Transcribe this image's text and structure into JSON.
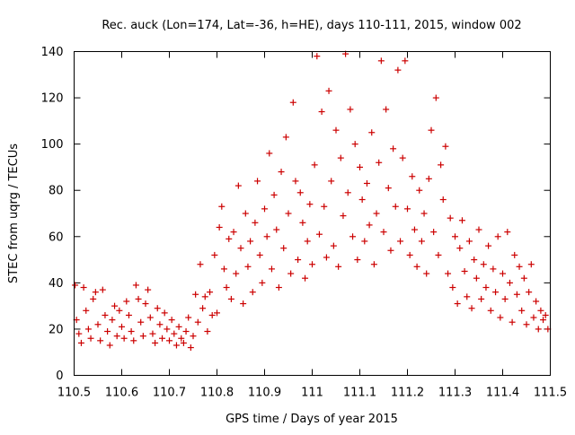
{
  "chart_data": {
    "type": "scatter",
    "title": "Rec. auck (Lon=174, Lat=-36, h=HE), days 110-111, 2015, window 002",
    "xlabel": "GPS time / Days of year 2015",
    "ylabel": "STEC from uqrg / TECUs",
    "xlim": [
      110.5,
      111.5
    ],
    "ylim": [
      0,
      140
    ],
    "xticks": [
      110.5,
      110.6,
      110.7,
      110.8,
      110.9,
      111.0,
      111.1,
      111.2,
      111.3,
      111.4,
      111.5
    ],
    "xtick_labels": [
      "110.5",
      "110.6",
      "110.7",
      "110.8",
      "110.9",
      "111",
      "111.1",
      "111.2",
      "111.3",
      "111.4",
      "111.5"
    ],
    "yticks": [
      0,
      20,
      40,
      60,
      80,
      100,
      120,
      140
    ],
    "ytick_labels": [
      "0",
      "20",
      "40",
      "60",
      "80",
      "100",
      "120",
      "140"
    ],
    "marker": "+",
    "marker_color": "#cc0000",
    "series": [
      {
        "name": "STEC",
        "points": [
          [
            110.502,
            39
          ],
          [
            110.505,
            24
          ],
          [
            110.51,
            18
          ],
          [
            110.515,
            14
          ],
          [
            110.52,
            38
          ],
          [
            110.525,
            28
          ],
          [
            110.53,
            20
          ],
          [
            110.535,
            16
          ],
          [
            110.54,
            33
          ],
          [
            110.545,
            36
          ],
          [
            110.55,
            22
          ],
          [
            110.555,
            15
          ],
          [
            110.56,
            37
          ],
          [
            110.565,
            26
          ],
          [
            110.57,
            19
          ],
          [
            110.575,
            13
          ],
          [
            110.58,
            24
          ],
          [
            110.585,
            30
          ],
          [
            110.59,
            17
          ],
          [
            110.595,
            28
          ],
          [
            110.6,
            21
          ],
          [
            110.605,
            16
          ],
          [
            110.61,
            32
          ],
          [
            110.615,
            26
          ],
          [
            110.62,
            19
          ],
          [
            110.625,
            15
          ],
          [
            110.63,
            39
          ],
          [
            110.635,
            33
          ],
          [
            110.64,
            23
          ],
          [
            110.645,
            17
          ],
          [
            110.65,
            31
          ],
          [
            110.655,
            37
          ],
          [
            110.66,
            25
          ],
          [
            110.665,
            18
          ],
          [
            110.67,
            14
          ],
          [
            110.675,
            29
          ],
          [
            110.68,
            22
          ],
          [
            110.685,
            16
          ],
          [
            110.69,
            27
          ],
          [
            110.695,
            20
          ],
          [
            110.7,
            15
          ],
          [
            110.705,
            24
          ],
          [
            110.71,
            18
          ],
          [
            110.715,
            13
          ],
          [
            110.72,
            21
          ],
          [
            110.725,
            16
          ],
          [
            110.73,
            14
          ],
          [
            110.735,
            19
          ],
          [
            110.74,
            25
          ],
          [
            110.745,
            12
          ],
          [
            110.75,
            17
          ],
          [
            110.755,
            35
          ],
          [
            110.76,
            23
          ],
          [
            110.765,
            48
          ],
          [
            110.77,
            29
          ],
          [
            110.775,
            34
          ],
          [
            110.78,
            19
          ],
          [
            110.785,
            36
          ],
          [
            110.79,
            26
          ],
          [
            110.795,
            52
          ],
          [
            110.8,
            27
          ],
          [
            110.805,
            64
          ],
          [
            110.81,
            73
          ],
          [
            110.815,
            46
          ],
          [
            110.82,
            38
          ],
          [
            110.825,
            59
          ],
          [
            110.83,
            33
          ],
          [
            110.835,
            62
          ],
          [
            110.84,
            44
          ],
          [
            110.845,
            82
          ],
          [
            110.85,
            55
          ],
          [
            110.855,
            31
          ],
          [
            110.86,
            70
          ],
          [
            110.865,
            47
          ],
          [
            110.87,
            58
          ],
          [
            110.875,
            36
          ],
          [
            110.88,
            66
          ],
          [
            110.885,
            84
          ],
          [
            110.89,
            52
          ],
          [
            110.895,
            40
          ],
          [
            110.9,
            72
          ],
          [
            110.905,
            60
          ],
          [
            110.91,
            96
          ],
          [
            110.915,
            46
          ],
          [
            110.92,
            78
          ],
          [
            110.925,
            63
          ],
          [
            110.93,
            38
          ],
          [
            110.935,
            88
          ],
          [
            110.94,
            55
          ],
          [
            110.945,
            103
          ],
          [
            110.95,
            70
          ],
          [
            110.955,
            44
          ],
          [
            110.96,
            118
          ],
          [
            110.965,
            84
          ],
          [
            110.97,
            50
          ],
          [
            110.975,
            79
          ],
          [
            110.98,
            66
          ],
          [
            110.985,
            42
          ],
          [
            110.99,
            58
          ],
          [
            110.995,
            74
          ],
          [
            111.0,
            48
          ],
          [
            111.005,
            91
          ],
          [
            111.01,
            138
          ],
          [
            111.015,
            61
          ],
          [
            111.02,
            114
          ],
          [
            111.025,
            73
          ],
          [
            111.03,
            51
          ],
          [
            111.035,
            123
          ],
          [
            111.04,
            84
          ],
          [
            111.045,
            56
          ],
          [
            111.05,
            106
          ],
          [
            111.055,
            47
          ],
          [
            111.06,
            94
          ],
          [
            111.065,
            69
          ],
          [
            111.07,
            139
          ],
          [
            111.075,
            79
          ],
          [
            111.08,
            115
          ],
          [
            111.085,
            60
          ],
          [
            111.09,
            100
          ],
          [
            111.095,
            50
          ],
          [
            111.1,
            90
          ],
          [
            111.105,
            76
          ],
          [
            111.11,
            58
          ],
          [
            111.115,
            83
          ],
          [
            111.12,
            65
          ],
          [
            111.125,
            105
          ],
          [
            111.13,
            48
          ],
          [
            111.135,
            70
          ],
          [
            111.14,
            92
          ],
          [
            111.145,
            136
          ],
          [
            111.15,
            62
          ],
          [
            111.155,
            115
          ],
          [
            111.16,
            81
          ],
          [
            111.165,
            54
          ],
          [
            111.17,
            98
          ],
          [
            111.175,
            73
          ],
          [
            111.18,
            132
          ],
          [
            111.185,
            58
          ],
          [
            111.19,
            94
          ],
          [
            111.195,
            136
          ],
          [
            111.2,
            72
          ],
          [
            111.205,
            52
          ],
          [
            111.21,
            86
          ],
          [
            111.215,
            63
          ],
          [
            111.22,
            47
          ],
          [
            111.225,
            80
          ],
          [
            111.23,
            58
          ],
          [
            111.235,
            70
          ],
          [
            111.24,
            44
          ],
          [
            111.245,
            85
          ],
          [
            111.25,
            106
          ],
          [
            111.255,
            62
          ],
          [
            111.26,
            120
          ],
          [
            111.265,
            52
          ],
          [
            111.27,
            91
          ],
          [
            111.275,
            76
          ],
          [
            111.28,
            99
          ],
          [
            111.285,
            44
          ],
          [
            111.29,
            68
          ],
          [
            111.295,
            38
          ],
          [
            111.3,
            60
          ],
          [
            111.305,
            31
          ],
          [
            111.31,
            55
          ],
          [
            111.315,
            67
          ],
          [
            111.32,
            45
          ],
          [
            111.325,
            34
          ],
          [
            111.33,
            58
          ],
          [
            111.335,
            29
          ],
          [
            111.34,
            50
          ],
          [
            111.345,
            42
          ],
          [
            111.35,
            63
          ],
          [
            111.355,
            33
          ],
          [
            111.36,
            48
          ],
          [
            111.365,
            38
          ],
          [
            111.37,
            56
          ],
          [
            111.375,
            28
          ],
          [
            111.38,
            46
          ],
          [
            111.385,
            36
          ],
          [
            111.39,
            60
          ],
          [
            111.395,
            25
          ],
          [
            111.4,
            44
          ],
          [
            111.405,
            33
          ],
          [
            111.41,
            62
          ],
          [
            111.415,
            40
          ],
          [
            111.42,
            23
          ],
          [
            111.425,
            52
          ],
          [
            111.43,
            35
          ],
          [
            111.435,
            47
          ],
          [
            111.44,
            28
          ],
          [
            111.445,
            42
          ],
          [
            111.45,
            22
          ],
          [
            111.455,
            36
          ],
          [
            111.46,
            48
          ],
          [
            111.465,
            25
          ],
          [
            111.47,
            32
          ],
          [
            111.475,
            20
          ],
          [
            111.48,
            28
          ],
          [
            111.485,
            24
          ],
          [
            111.49,
            26
          ],
          [
            111.495,
            20
          ]
        ]
      }
    ]
  }
}
